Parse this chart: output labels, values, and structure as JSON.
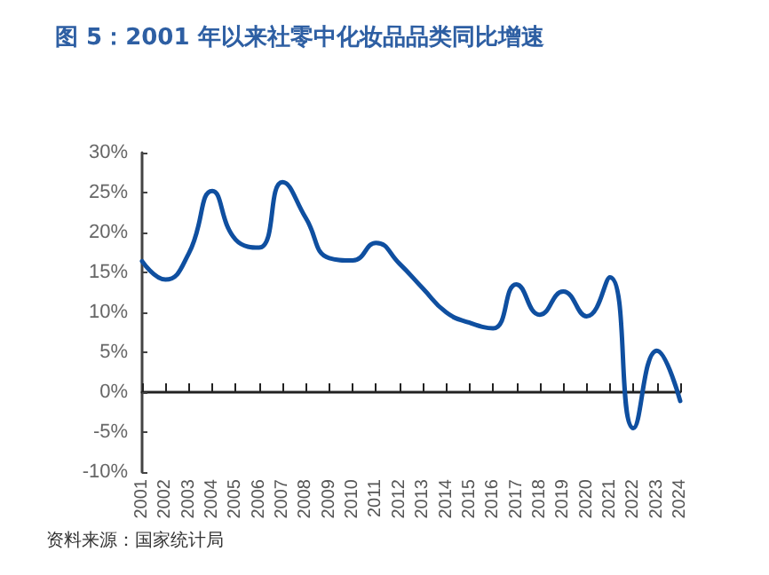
{
  "chart_data": {
    "type": "line",
    "title": "图 5：2001 年以来社零中化妆品品类同比增速",
    "categories": [
      "2001",
      "2002",
      "2003",
      "2004",
      "2005",
      "2006",
      "2007",
      "2008",
      "2009",
      "2010",
      "2011",
      "2012",
      "2013",
      "2014",
      "2015",
      "2016",
      "2017",
      "2018",
      "2019",
      "2020",
      "2021",
      "2022",
      "2023",
      "2024"
    ],
    "series": [
      {
        "color": "#0f4fa0",
        "values": [
          16.4,
          14.1,
          17.4,
          25.2,
          19.1,
          18.1,
          26.3,
          21.8,
          16.8,
          16.5,
          18.7,
          16.1,
          13.0,
          10.0,
          8.7,
          8.0,
          13.5,
          9.7,
          12.6,
          9.5,
          14.4,
          -4.5,
          5.2,
          -1.1
        ]
      }
    ],
    "ylim": [
      -10,
      30
    ],
    "yticks": [
      {
        "value": -10,
        "label": "-10%"
      },
      {
        "value": -5,
        "label": "-5%"
      },
      {
        "value": 0,
        "label": "0%"
      },
      {
        "value": 5,
        "label": "5%"
      },
      {
        "value": 10,
        "label": "10%"
      },
      {
        "value": 15,
        "label": "15%"
      },
      {
        "value": 20,
        "label": "20%"
      },
      {
        "value": 25,
        "label": "25%"
      },
      {
        "value": 30,
        "label": "30%"
      }
    ],
    "marker": "none",
    "line_style": "solid",
    "annotations": [
      "资料来源：国家统计局"
    ]
  }
}
